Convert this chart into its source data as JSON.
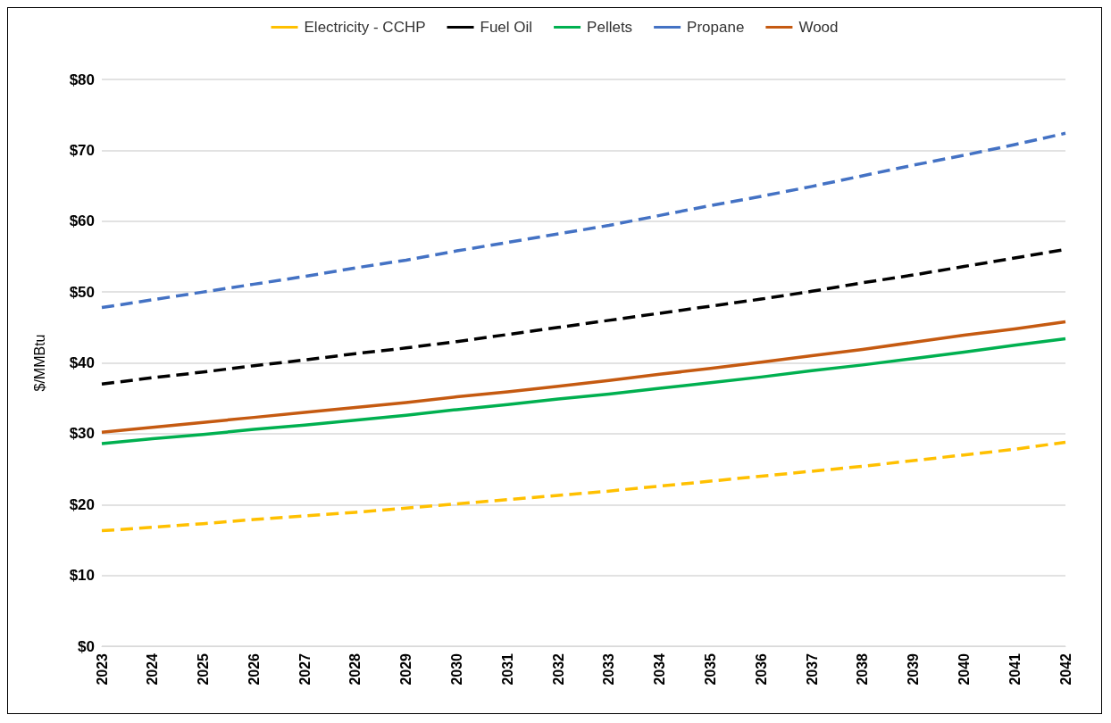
{
  "chart_data": {
    "type": "line",
    "ylabel": "$/MMBtu",
    "categories": [
      "2023",
      "2024",
      "2025",
      "2026",
      "2027",
      "2028",
      "2029",
      "2030",
      "2031",
      "2032",
      "2033",
      "2034",
      "2035",
      "2036",
      "2037",
      "2038",
      "2039",
      "2040",
      "2041",
      "2042"
    ],
    "ylim": [
      0,
      80
    ],
    "yticks": [
      {
        "value": 0,
        "label": "$0"
      },
      {
        "value": 10,
        "label": "$10"
      },
      {
        "value": 20,
        "label": "$20"
      },
      {
        "value": 30,
        "label": "$30"
      },
      {
        "value": 40,
        "label": "$40"
      },
      {
        "value": 50,
        "label": "$50"
      },
      {
        "value": 60,
        "label": "$60"
      },
      {
        "value": 70,
        "label": "$70"
      },
      {
        "value": 80,
        "label": "$80"
      }
    ],
    "grid": "y",
    "legend": "top",
    "marker": "none",
    "series": [
      {
        "name": "Electricity - CCHP",
        "color": "#ffc000",
        "line_style": "dashed",
        "values": [
          16.3,
          16.8,
          17.3,
          17.9,
          18.4,
          18.9,
          19.5,
          20.1,
          20.7,
          21.3,
          21.9,
          22.6,
          23.3,
          24.0,
          24.7,
          25.4,
          26.2,
          27.0,
          27.8,
          28.8
        ]
      },
      {
        "name": "Fuel Oil",
        "color": "#000000",
        "line_style": "dashed",
        "values": [
          37.0,
          37.9,
          38.7,
          39.6,
          40.4,
          41.3,
          42.1,
          43.0,
          44.0,
          45.0,
          46.0,
          47.0,
          48.0,
          49.0,
          50.1,
          51.3,
          52.4,
          53.6,
          54.8,
          56.0
        ]
      },
      {
        "name": "Pellets",
        "color": "#00b050",
        "line_style": "solid",
        "values": [
          28.6,
          29.3,
          29.9,
          30.6,
          31.2,
          31.9,
          32.6,
          33.4,
          34.1,
          34.9,
          35.6,
          36.4,
          37.2,
          38.0,
          38.9,
          39.7,
          40.6,
          41.5,
          42.5,
          43.4
        ]
      },
      {
        "name": "Propane",
        "color": "#4472c4",
        "line_style": "dashed",
        "values": [
          47.8,
          48.9,
          50.0,
          51.1,
          52.2,
          53.4,
          54.5,
          55.8,
          57.0,
          58.2,
          59.4,
          60.8,
          62.2,
          63.5,
          64.9,
          66.4,
          67.9,
          69.3,
          70.8,
          72.4
        ]
      },
      {
        "name": "Wood",
        "color": "#c55a11",
        "line_style": "solid",
        "values": [
          30.2,
          30.9,
          31.6,
          32.3,
          33.0,
          33.7,
          34.4,
          35.2,
          35.9,
          36.7,
          37.5,
          38.4,
          39.2,
          40.1,
          41.0,
          41.9,
          42.9,
          43.9,
          44.8,
          45.8
        ]
      }
    ]
  }
}
